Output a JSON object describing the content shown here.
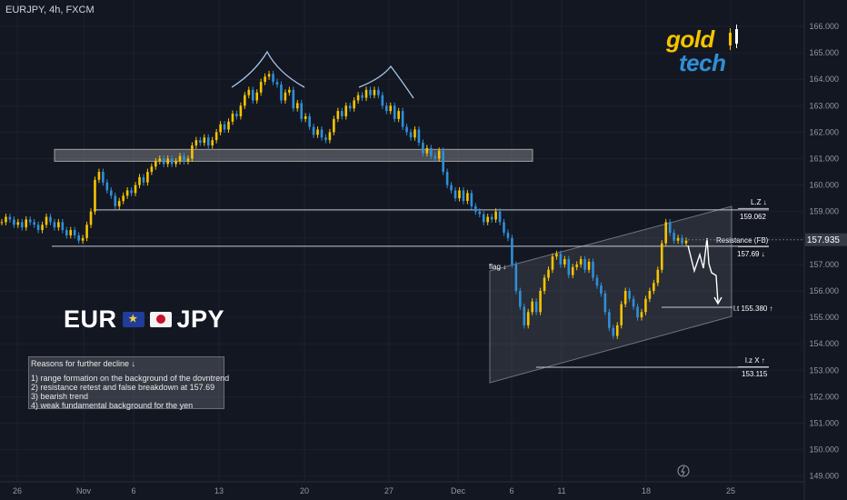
{
  "header": {
    "symbol_line": "EURJPY, 4h, FXCM"
  },
  "title_overlay": {
    "base": "EUR",
    "quote": "JPY"
  },
  "logo": {
    "line1": "gold",
    "line2": "tech"
  },
  "reasons": {
    "title": "Reasons for further decline ↓",
    "items": [
      "1) range formation on the background of the dovntrend",
      "2) resistance retest and false breakdown at 157.69",
      "3) bearish trend",
      "4) weak fundamental background for the yen"
    ]
  },
  "annotations": {
    "lz_label": "L.Z ↓",
    "lz_value": "159.062",
    "resistance_label": "Resistance (FB)",
    "resistance_value": "157.69 ↓",
    "lt_label": "l.t 155.380 ↑",
    "lz2_label": "l.z   X ↑",
    "lz2_value": "153.115",
    "flag_label": "flag ↓",
    "current_price": "157.935"
  },
  "colors": {
    "background": "#131722",
    "bull": "#f5c400",
    "bear": "#2f8fd8",
    "price_tag": "#363a45",
    "grid": "#1c2030"
  },
  "chart_data": {
    "type": "candlestick",
    "title": "EURJPY, 4h, FXCM",
    "ylim": [
      148.9,
      166.6
    ],
    "y_ticks": [
      "149.000",
      "150.000",
      "151.000",
      "152.000",
      "153.000",
      "154.000",
      "155.000",
      "156.000",
      "157.000",
      "158.000",
      "159.000",
      "160.000",
      "161.000",
      "162.000",
      "163.000",
      "164.000",
      "165.000",
      "166.000"
    ],
    "x_ticks": [
      "26",
      "Nov",
      "6",
      "13",
      "20",
      "27",
      "Dec",
      "6",
      "11",
      "18",
      "25"
    ],
    "series": [
      {
        "values": [
          158.6,
          158.8,
          158.7,
          158.5,
          158.6,
          158.4,
          158.7,
          158.6,
          158.5,
          158.3,
          158.5,
          158.8,
          158.6,
          158.4,
          158.6,
          158.3,
          158.1,
          158.3,
          158.1,
          157.9,
          158.0,
          158.5,
          159.0,
          160.2,
          160.5,
          160.1,
          159.8,
          159.6,
          159.2,
          159.4,
          159.6,
          159.8,
          159.7,
          160.0,
          160.3,
          160.1,
          160.5,
          160.7,
          160.9,
          161.0,
          160.8,
          161.0,
          160.8,
          160.9,
          161.1,
          160.9,
          161.0,
          161.5,
          161.7,
          161.6,
          161.8,
          161.5,
          161.7,
          162.0,
          162.3,
          162.1,
          162.4,
          162.7,
          162.6,
          163.0,
          163.4,
          163.6,
          163.2,
          163.5,
          163.9,
          164.1,
          164.2,
          163.9,
          163.8,
          163.2,
          163.5,
          163.6,
          162.9,
          163.1,
          162.5,
          162.6,
          162.2,
          161.9,
          162.1,
          161.8,
          161.7,
          162.0,
          162.5,
          162.8,
          162.6,
          163.0,
          162.9,
          163.2,
          163.4,
          163.3,
          163.6,
          163.4,
          163.6,
          163.4,
          163.0,
          162.8,
          163.0,
          162.5,
          162.8,
          162.2,
          162.0,
          161.8,
          162.1,
          161.6,
          161.2,
          161.4,
          161.1,
          161.0,
          161.3,
          160.5,
          160.0,
          159.8,
          159.5,
          159.8,
          159.4,
          159.7,
          159.2,
          159.0,
          158.9,
          158.6,
          158.8,
          158.7,
          159.0,
          158.6,
          158.2,
          158.0,
          157.0,
          156.0,
          155.4,
          154.7,
          155.2,
          155.6,
          155.2,
          156.0,
          156.5,
          156.8,
          157.3,
          157.4,
          157.0,
          157.2,
          156.6,
          156.9,
          157.0,
          157.2,
          156.8,
          157.1,
          156.5,
          156.2,
          155.9,
          155.2,
          154.6,
          154.3,
          154.7,
          155.5,
          156.0,
          155.7,
          155.4,
          155.0,
          155.2,
          155.7,
          156.0,
          156.3,
          156.8,
          157.8,
          158.6,
          158.2,
          157.9,
          158.0,
          157.8,
          157.9
        ]
      }
    ],
    "levels": [
      {
        "name": "L.Z",
        "value": 159.062
      },
      {
        "name": "Resistance (FB)",
        "value": 157.69
      },
      {
        "name": "l.t",
        "value": 155.38
      },
      {
        "name": "l.z",
        "value": 153.115
      }
    ],
    "zones": [
      {
        "from": 160.9,
        "to": 161.35
      }
    ],
    "grid": true
  }
}
